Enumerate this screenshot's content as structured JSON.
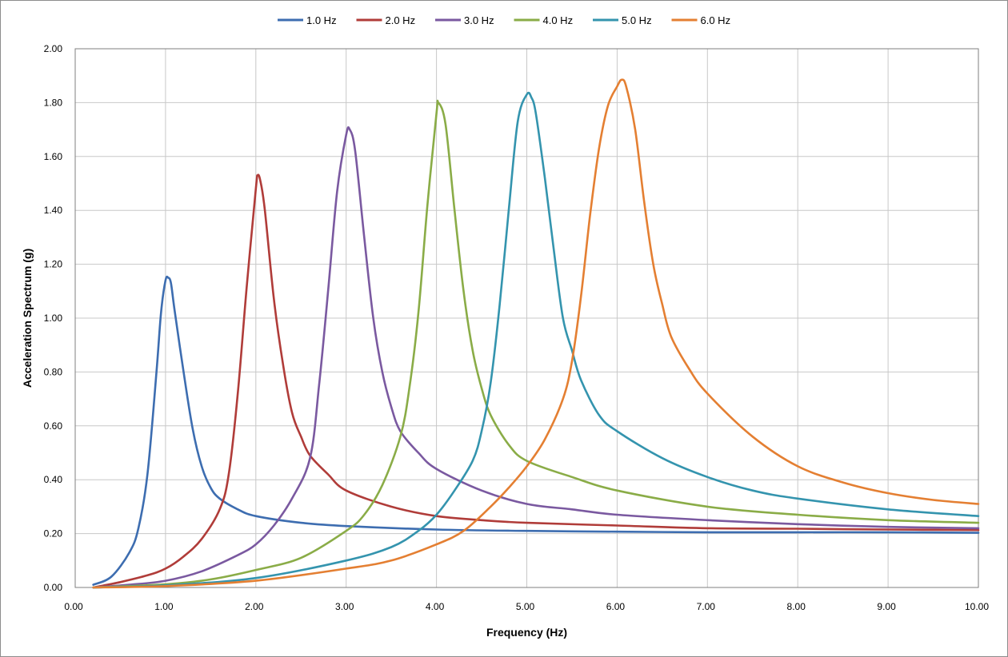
{
  "chart_data": {
    "type": "line",
    "title": "",
    "xlabel": "Frequency (Hz)",
    "ylabel": "Acceleration Spectrum (g)",
    "xlim": [
      0,
      10
    ],
    "ylim": [
      0,
      2
    ],
    "x_ticks": [
      "0.00",
      "1.00",
      "2.00",
      "3.00",
      "4.00",
      "5.00",
      "6.00",
      "7.00",
      "8.00",
      "9.00",
      "10.00"
    ],
    "y_ticks": [
      "0.00",
      "0.20",
      "0.40",
      "0.60",
      "0.80",
      "1.00",
      "1.20",
      "1.40",
      "1.60",
      "1.80",
      "2.00"
    ],
    "grid": true,
    "legend_position": "top",
    "series": [
      {
        "name": "1.0 Hz",
        "color": "#3d6db0",
        "points": [
          [
            0.2,
            0.01
          ],
          [
            0.4,
            0.04
          ],
          [
            0.6,
            0.13
          ],
          [
            0.7,
            0.22
          ],
          [
            0.8,
            0.42
          ],
          [
            0.9,
            0.8
          ],
          [
            0.95,
            1.02
          ],
          [
            1.0,
            1.14
          ],
          [
            1.03,
            1.15
          ],
          [
            1.06,
            1.13
          ],
          [
            1.1,
            1.03
          ],
          [
            1.2,
            0.8
          ],
          [
            1.3,
            0.59
          ],
          [
            1.4,
            0.45
          ],
          [
            1.5,
            0.37
          ],
          [
            1.6,
            0.33
          ],
          [
            1.8,
            0.29
          ],
          [
            2.0,
            0.265
          ],
          [
            2.5,
            0.24
          ],
          [
            3.0,
            0.228
          ],
          [
            4.0,
            0.215
          ],
          [
            5.0,
            0.21
          ],
          [
            6.0,
            0.207
          ],
          [
            7.0,
            0.205
          ],
          [
            8.0,
            0.205
          ],
          [
            9.0,
            0.205
          ],
          [
            10.0,
            0.203
          ]
        ]
      },
      {
        "name": "2.0 Hz",
        "color": "#b03c39",
        "points": [
          [
            0.2,
            0.0
          ],
          [
            0.5,
            0.02
          ],
          [
            0.8,
            0.045
          ],
          [
            1.0,
            0.07
          ],
          [
            1.2,
            0.115
          ],
          [
            1.4,
            0.18
          ],
          [
            1.6,
            0.29
          ],
          [
            1.7,
            0.42
          ],
          [
            1.8,
            0.72
          ],
          [
            1.9,
            1.12
          ],
          [
            2.0,
            1.48
          ],
          [
            2.02,
            1.53
          ],
          [
            2.05,
            1.51
          ],
          [
            2.1,
            1.4
          ],
          [
            2.2,
            1.07
          ],
          [
            2.3,
            0.83
          ],
          [
            2.4,
            0.65
          ],
          [
            2.5,
            0.56
          ],
          [
            2.6,
            0.49
          ],
          [
            2.8,
            0.42
          ],
          [
            3.0,
            0.36
          ],
          [
            3.5,
            0.3
          ],
          [
            4.0,
            0.265
          ],
          [
            4.5,
            0.25
          ],
          [
            5.0,
            0.24
          ],
          [
            6.0,
            0.23
          ],
          [
            7.0,
            0.22
          ],
          [
            8.0,
            0.218
          ],
          [
            9.0,
            0.215
          ],
          [
            10.0,
            0.213
          ]
        ]
      },
      {
        "name": "3.0 Hz",
        "color": "#7a59a0",
        "points": [
          [
            0.2,
            0.0
          ],
          [
            0.6,
            0.01
          ],
          [
            1.0,
            0.025
          ],
          [
            1.4,
            0.06
          ],
          [
            1.8,
            0.12
          ],
          [
            2.0,
            0.16
          ],
          [
            2.2,
            0.23
          ],
          [
            2.4,
            0.33
          ],
          [
            2.6,
            0.48
          ],
          [
            2.7,
            0.75
          ],
          [
            2.8,
            1.1
          ],
          [
            2.9,
            1.47
          ],
          [
            3.0,
            1.68
          ],
          [
            3.04,
            1.7
          ],
          [
            3.1,
            1.62
          ],
          [
            3.2,
            1.3
          ],
          [
            3.3,
            1.0
          ],
          [
            3.4,
            0.8
          ],
          [
            3.5,
            0.67
          ],
          [
            3.6,
            0.58
          ],
          [
            3.8,
            0.5
          ],
          [
            4.0,
            0.44
          ],
          [
            4.5,
            0.36
          ],
          [
            5.0,
            0.31
          ],
          [
            5.5,
            0.29
          ],
          [
            6.0,
            0.27
          ],
          [
            7.0,
            0.25
          ],
          [
            8.0,
            0.235
          ],
          [
            9.0,
            0.225
          ],
          [
            10.0,
            0.22
          ]
        ]
      },
      {
        "name": "4.0 Hz",
        "color": "#8aac47",
        "points": [
          [
            0.2,
            0.0
          ],
          [
            1.0,
            0.012
          ],
          [
            1.5,
            0.03
          ],
          [
            2.0,
            0.065
          ],
          [
            2.5,
            0.11
          ],
          [
            3.0,
            0.21
          ],
          [
            3.2,
            0.27
          ],
          [
            3.4,
            0.38
          ],
          [
            3.6,
            0.56
          ],
          [
            3.7,
            0.74
          ],
          [
            3.8,
            1.02
          ],
          [
            3.9,
            1.42
          ],
          [
            4.0,
            1.76
          ],
          [
            4.02,
            1.8
          ],
          [
            4.1,
            1.72
          ],
          [
            4.2,
            1.4
          ],
          [
            4.3,
            1.1
          ],
          [
            4.4,
            0.88
          ],
          [
            4.5,
            0.74
          ],
          [
            4.6,
            0.64
          ],
          [
            4.8,
            0.53
          ],
          [
            5.0,
            0.47
          ],
          [
            5.5,
            0.41
          ],
          [
            6.0,
            0.36
          ],
          [
            7.0,
            0.3
          ],
          [
            8.0,
            0.27
          ],
          [
            9.0,
            0.25
          ],
          [
            10.0,
            0.24
          ]
        ]
      },
      {
        "name": "5.0 Hz",
        "color": "#3494ae",
        "points": [
          [
            0.2,
            0.0
          ],
          [
            1.0,
            0.008
          ],
          [
            2.0,
            0.035
          ],
          [
            3.0,
            0.1
          ],
          [
            3.5,
            0.15
          ],
          [
            3.8,
            0.21
          ],
          [
            4.0,
            0.27
          ],
          [
            4.2,
            0.36
          ],
          [
            4.4,
            0.47
          ],
          [
            4.5,
            0.58
          ],
          [
            4.6,
            0.76
          ],
          [
            4.7,
            1.05
          ],
          [
            4.8,
            1.4
          ],
          [
            4.9,
            1.73
          ],
          [
            5.0,
            1.83
          ],
          [
            5.05,
            1.82
          ],
          [
            5.1,
            1.76
          ],
          [
            5.2,
            1.52
          ],
          [
            5.3,
            1.25
          ],
          [
            5.4,
            1.0
          ],
          [
            5.5,
            0.88
          ],
          [
            5.6,
            0.77
          ],
          [
            5.8,
            0.64
          ],
          [
            6.0,
            0.58
          ],
          [
            6.5,
            0.48
          ],
          [
            7.0,
            0.41
          ],
          [
            7.5,
            0.36
          ],
          [
            8.0,
            0.33
          ],
          [
            9.0,
            0.29
          ],
          [
            10.0,
            0.265
          ]
        ]
      },
      {
        "name": "6.0 Hz",
        "color": "#e47f32",
        "points": [
          [
            0.2,
            0.0
          ],
          [
            1.0,
            0.005
          ],
          [
            2.0,
            0.025
          ],
          [
            3.0,
            0.07
          ],
          [
            3.5,
            0.1
          ],
          [
            4.0,
            0.16
          ],
          [
            4.3,
            0.21
          ],
          [
            4.6,
            0.3
          ],
          [
            4.8,
            0.37
          ],
          [
            5.0,
            0.45
          ],
          [
            5.2,
            0.55
          ],
          [
            5.4,
            0.7
          ],
          [
            5.5,
            0.84
          ],
          [
            5.6,
            1.08
          ],
          [
            5.7,
            1.38
          ],
          [
            5.8,
            1.63
          ],
          [
            5.9,
            1.79
          ],
          [
            6.0,
            1.86
          ],
          [
            6.05,
            1.885
          ],
          [
            6.1,
            1.86
          ],
          [
            6.2,
            1.7
          ],
          [
            6.3,
            1.43
          ],
          [
            6.4,
            1.2
          ],
          [
            6.5,
            1.05
          ],
          [
            6.6,
            0.93
          ],
          [
            6.8,
            0.81
          ],
          [
            7.0,
            0.72
          ],
          [
            7.5,
            0.56
          ],
          [
            8.0,
            0.45
          ],
          [
            8.5,
            0.39
          ],
          [
            9.0,
            0.35
          ],
          [
            9.5,
            0.325
          ],
          [
            10.0,
            0.31
          ]
        ]
      }
    ]
  }
}
